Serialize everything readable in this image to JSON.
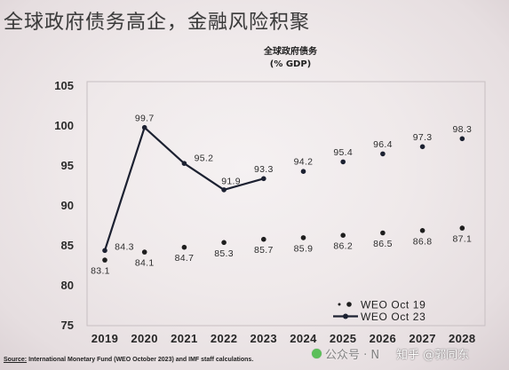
{
  "slide": {
    "title": "全球政府债务高企，金融风险积聚",
    "source_label": "Source:",
    "source_text": "International Monetary Fund (WEO October 2023) and IMF staff calculations."
  },
  "watermark": {
    "account": "公众号 · N",
    "zhihu": "知乎 @郭同东",
    "icon": "wechat-icon"
  },
  "chart_data": {
    "type": "line",
    "title": "全球政府债务",
    "subtitle": "(% GDP)",
    "xlabel": "",
    "ylabel": "",
    "x": [
      "2019",
      "2020",
      "2021",
      "2022",
      "2023",
      "2024",
      "2025",
      "2026",
      "2027",
      "2028"
    ],
    "ylim": [
      75,
      105
    ],
    "yticks": [
      75,
      80,
      85,
      90,
      95,
      100,
      105
    ],
    "grid": false,
    "legend": "bottom-right",
    "series": [
      {
        "name": "WEO Oct 19",
        "mode": "markers",
        "color": "#1e1e1e",
        "values": [
          83.1,
          84.1,
          84.7,
          85.3,
          85.7,
          85.9,
          86.2,
          86.5,
          86.8,
          87.1
        ]
      },
      {
        "name": "WEO Oct 23",
        "mode": "lines+markers",
        "line_through": "2023",
        "color": "#1c2131",
        "values": [
          84.3,
          99.7,
          95.2,
          91.9,
          93.3,
          94.2,
          95.4,
          96.4,
          97.3,
          98.3
        ]
      }
    ]
  }
}
